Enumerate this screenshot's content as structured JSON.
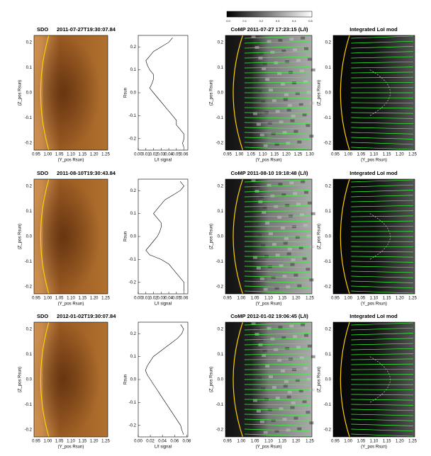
{
  "colorbar_ticks": [
    "0.0",
    "0.1",
    "0.2",
    "0.3",
    "0.4",
    "0.5"
  ],
  "rows": [
    {
      "sdo": {
        "title": "SDO",
        "date": "2011-07-27T19:30:07.84",
        "ylabel": "(Z_pos Rsun)",
        "xlabel": "(Y_pos Rsun)",
        "yticks": [
          "0.2",
          "0.1",
          "0.0",
          "-0.1",
          "-0.2"
        ],
        "xticks": [
          "0.95",
          "1.00",
          "1.05",
          "1.10",
          "1.15",
          "1.20",
          "1.25"
        ]
      },
      "comp": {
        "title": "CoMP 2011-07-27 17:23:15 (L/I)",
        "ylabel": "(Z_pos Rsun)",
        "xlabel": "(Y_pos Rsun)",
        "yticks": [
          "0.2",
          "0.1",
          "0.0",
          "-0.1",
          "-0.2"
        ],
        "xticks": [
          "0.95",
          "1.00",
          "1.05",
          "1.10",
          "1.15",
          "1.20",
          "1.25",
          "1.30"
        ]
      },
      "lol": {
        "title": "Integrated LoI mod",
        "ylabel": "(Z_pos Rsun)",
        "xlabel": "(Y_pos Rsun)",
        "yticks": [
          "0.2",
          "0.1",
          "0.0",
          "-0.1",
          "-0.2"
        ],
        "xticks": [
          "0.95",
          "1.00",
          "1.05",
          "1.10",
          "1.15",
          "1.20",
          "1.25"
        ]
      }
    },
    {
      "sdo": {
        "title": "SDO",
        "date": "2011-08-10T19:30:43.84",
        "ylabel": "(Z_pos Rsun)",
        "xlabel": "(Y_pos Rsun)",
        "yticks": [
          "0.2",
          "0.1",
          "0.0",
          "-0.1",
          "-0.2"
        ],
        "xticks": [
          "0.95",
          "1.00",
          "1.05",
          "1.10",
          "1.15",
          "1.20",
          "1.25"
        ]
      },
      "comp": {
        "title": "CoMP 2011-08-10 19:18:48 (L/I)",
        "ylabel": "(Z_pos Rsun)",
        "xlabel": "(Y_pos Rsun)",
        "yticks": [
          "0.2",
          "0.1",
          "0.0",
          "-0.1",
          "-0.2"
        ],
        "xticks": [
          "0.95",
          "1.00",
          "1.05",
          "1.10",
          "1.15",
          "1.20",
          "1.25"
        ]
      },
      "lol": {
        "title": "Integrated LoI mod",
        "ylabel": "(Z_pos Rsun)",
        "xlabel": "(Y_pos Rsun)",
        "yticks": [
          "0.2",
          "0.1",
          "0.0",
          "-0.1",
          "-0.2"
        ],
        "xticks": [
          "0.95",
          "1.00",
          "1.05",
          "1.10",
          "1.15",
          "1.20",
          "1.25"
        ]
      }
    },
    {
      "sdo": {
        "title": "SDO",
        "date": "2012-01-02T19:30:07.84",
        "ylabel": "(Z_pos Rsun)",
        "xlabel": "(Y_pos Rsun)",
        "yticks": [
          "0.2",
          "0.1",
          "0.0",
          "-0.1",
          "-0.2"
        ],
        "xticks": [
          "0.95",
          "1.00",
          "1.05",
          "1.10",
          "1.15",
          "1.20",
          "1.25"
        ]
      },
      "comp": {
        "title": "CoMP 2012-01-02 19:06:45 (L/I)",
        "ylabel": "(Z_pos Rsun)",
        "xlabel": "(Y_pos Rsun)",
        "yticks": [
          "0.2",
          "0.1",
          "0.0",
          "-0.1",
          "-0.2"
        ],
        "xticks": [
          "0.95",
          "1.00",
          "1.05",
          "1.10",
          "1.15",
          "1.20",
          "1.25"
        ]
      },
      "lol": {
        "title": "Integrated LoI mod",
        "ylabel": "(Z_pos Rsun)",
        "xlabel": "(Y_pos Rsun)",
        "yticks": [
          "0.2",
          "0.1",
          "0.0",
          "-0.1",
          "-0.2"
        ],
        "xticks": [
          "0.95",
          "1.00",
          "1.05",
          "1.10",
          "1.15",
          "1.20",
          "1.25"
        ]
      }
    }
  ],
  "chart_data": [
    {
      "type": "line",
      "xlabel": "L/I signal",
      "ylabel": "Rsun",
      "color": "#000000",
      "y": [
        0.24,
        0.22,
        0.2,
        0.18,
        0.16,
        0.14,
        0.12,
        0.1,
        0.08,
        0.06,
        0.04,
        0.02,
        0,
        -0.02,
        -0.04,
        -0.06,
        -0.08,
        -0.1,
        -0.12,
        -0.14,
        -0.16,
        -0.18,
        -0.2,
        -0.22,
        -0.24
      ],
      "values": [
        0.045,
        0.04,
        0.03,
        0.02,
        0.015,
        0.01,
        0.012,
        0.015,
        0.02,
        0.02,
        0.018,
        0.015,
        0.02,
        0.025,
        0.03,
        0.035,
        0.04,
        0.045,
        0.05,
        0.05,
        0.055,
        0.06,
        0.06,
        0.058,
        0.06
      ],
      "xlim": [
        0,
        0.065
      ],
      "ylim": [
        -0.25,
        0.25
      ],
      "xticks": [
        {
          "value": 0,
          "label": "0.00"
        },
        0.01,
        0.02,
        0.03,
        0.04,
        0.05,
        0.06
      ],
      "yticks": [
        0.2,
        0.1,
        {
          "value": 0,
          "label": "0.0"
        },
        -0.1,
        -0.2
      ]
    },
    {
      "type": "line",
      "xlabel": "L/I signal",
      "ylabel": "Rsun",
      "color": "#000000",
      "y": [
        0.24,
        0.22,
        0.2,
        0.18,
        0.16,
        0.14,
        0.12,
        0.1,
        0.08,
        0.06,
        0.04,
        0.02,
        0,
        -0.02,
        -0.04,
        -0.06,
        -0.08,
        -0.1,
        -0.12,
        -0.14,
        -0.16,
        -0.18,
        -0.2,
        -0.22,
        -0.24
      ],
      "values": [
        0.055,
        0.06,
        0.055,
        0.045,
        0.035,
        0.03,
        0.025,
        0.02,
        0.025,
        0.03,
        0.03,
        0.028,
        0.025,
        0.02,
        0.015,
        0.01,
        0.015,
        0.03,
        0.04,
        0.045,
        0.05,
        0.055,
        0.06,
        0.06,
        0.06
      ],
      "xlim": [
        0,
        0.065
      ],
      "ylim": [
        -0.25,
        0.25
      ],
      "xticks": [
        {
          "value": 0,
          "label": "0.00"
        },
        0.01,
        0.02,
        0.03,
        0.04,
        0.05,
        0.06
      ],
      "yticks": [
        0.2,
        0.1,
        {
          "value": 0,
          "label": "0.0"
        },
        -0.1,
        -0.2
      ]
    },
    {
      "type": "line",
      "xlabel": "L/I signal",
      "ylabel": "Rsun",
      "color": "#000000",
      "y": [
        0.24,
        0.22,
        0.2,
        0.18,
        0.16,
        0.14,
        0.12,
        0.1,
        0.08,
        0.06,
        0.04,
        0.02,
        0,
        -0.02,
        -0.04,
        -0.06,
        -0.08,
        -0.1,
        -0.12,
        -0.14,
        -0.16,
        -0.18,
        -0.2,
        -0.22,
        -0.24
      ],
      "values": [
        0.07,
        0.075,
        0.072,
        0.065,
        0.055,
        0.045,
        0.035,
        0.025,
        0.02,
        0.015,
        0.012,
        0.015,
        0.02,
        0.025,
        0.03,
        0.035,
        0.04,
        0.045,
        0.05,
        0.055,
        0.06,
        0.065,
        0.07,
        0.072,
        0.075
      ],
      "xlim": [
        0,
        0.082
      ],
      "ylim": [
        -0.25,
        0.25
      ],
      "xticks": [
        {
          "value": 0,
          "label": "0.00"
        },
        0.02,
        0.04,
        0.06,
        0.08
      ],
      "yticks": [
        0.2,
        0.1,
        {
          "value": 0,
          "label": "0.0"
        },
        -0.1,
        -0.2
      ]
    }
  ]
}
